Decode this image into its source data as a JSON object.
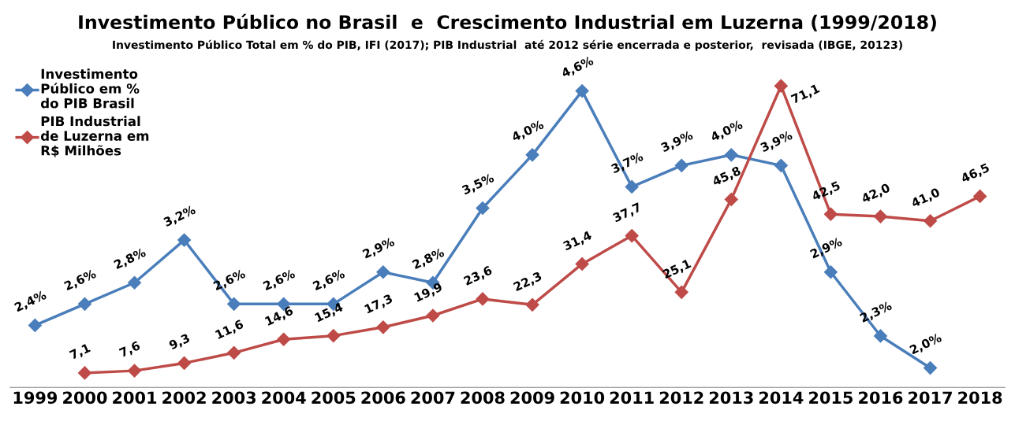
{
  "chart_data": {
    "type": "line",
    "title": "Investimento Público no Brasil  e  Crescimento Industrial em Luzerna (1999/2018)",
    "subtitle": "Investimento Público Total em % do PIB, IFI (2017); PIB Industrial  até 2012 série encerrada e posterior,  revisada (IBGE, 20123)",
    "categories": [
      "1999",
      "2000",
      "2001",
      "2002",
      "2003",
      "2004",
      "2005",
      "2006",
      "2007",
      "2008",
      "2009",
      "2010",
      "2011",
      "2012",
      "2013",
      "2014",
      "2015",
      "2016",
      "2017",
      "2018"
    ],
    "series": [
      {
        "name": "Investimento\nPúblico em %\ndo PIB Brasil",
        "color": "#4a7ebb",
        "values": [
          2.4,
          2.6,
          2.8,
          3.2,
          2.6,
          2.6,
          2.6,
          2.9,
          2.8,
          3.5,
          4.0,
          4.6,
          3.7,
          3.9,
          4.0,
          3.9,
          2.9,
          2.3,
          2.0,
          null
        ],
        "value_labels": [
          "2,4%",
          "2,6%",
          "2,8%",
          "3,2%",
          "2,6%",
          "2,6%",
          "2,6%",
          "2,9%",
          "2,8%",
          "3,5%",
          "4,0%",
          "4,6%",
          "3,7%",
          "3,9%",
          "4,0%",
          "3,9%",
          "2,9%",
          "2,3%",
          "2,0%",
          null
        ]
      },
      {
        "name": "PIB Industrial\nde Luzerna em\nR$ Milhões",
        "color": "#be4b48",
        "axis": "y2",
        "values": [
          null,
          7.1,
          7.6,
          9.3,
          11.6,
          14.6,
          15.4,
          17.3,
          19.9,
          23.6,
          22.3,
          31.4,
          37.7,
          25.1,
          45.8,
          71.1,
          42.5,
          42.0,
          41.0,
          46.5
        ],
        "value_labels": [
          null,
          "7,1",
          "7,6",
          "9,3",
          "11,6",
          "14,6",
          "15,4",
          "17,3",
          "19,9",
          "23,6",
          "22,3",
          "31,4",
          "37,7",
          "25,1",
          "45,8",
          "71,1",
          "42,5",
          "42,0",
          "41,0",
          "46,5"
        ]
      }
    ],
    "tick_labels": "x",
    "marker": "diamond",
    "line_style": "solid",
    "legend": "top left",
    "grid": false
  }
}
